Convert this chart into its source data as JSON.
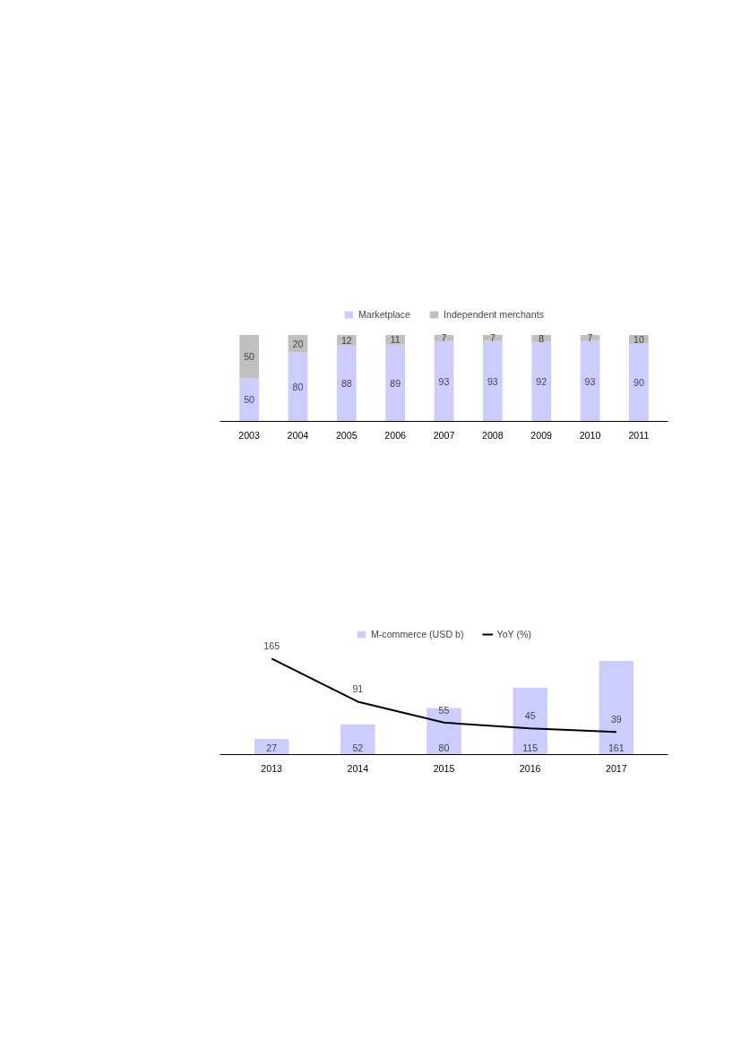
{
  "chart_data": [
    {
      "type": "bar",
      "stacked": true,
      "categories": [
        "2003",
        "2004",
        "2005",
        "2006",
        "2007",
        "2008",
        "2009",
        "2010",
        "2011"
      ],
      "tick_labels": "x",
      "data_labels": true,
      "legend": "top",
      "series": [
        {
          "name": "Marketplace",
          "color": "#ccccff",
          "values": [
            50,
            80,
            88,
            89,
            93,
            93,
            92,
            93,
            90
          ]
        },
        {
          "name": "Independent merchants",
          "color": "#c0c0c0",
          "values": [
            50,
            20,
            12,
            11,
            7,
            7,
            8,
            7,
            10
          ]
        }
      ]
    },
    {
      "type": "bar",
      "categories": [
        "2013",
        "2014",
        "2015",
        "2016",
        "2017"
      ],
      "tick_labels": "x",
      "data_labels": true,
      "legend": "top",
      "series": [
        {
          "name": "M-commerce (USD b)",
          "color": "#ccccff",
          "values": [
            27,
            52,
            80,
            115,
            161
          ]
        },
        {
          "name": "YoY (%)",
          "type": "line",
          "color": "#000000",
          "values": [
            165,
            91,
            55,
            45,
            39
          ]
        }
      ]
    }
  ]
}
